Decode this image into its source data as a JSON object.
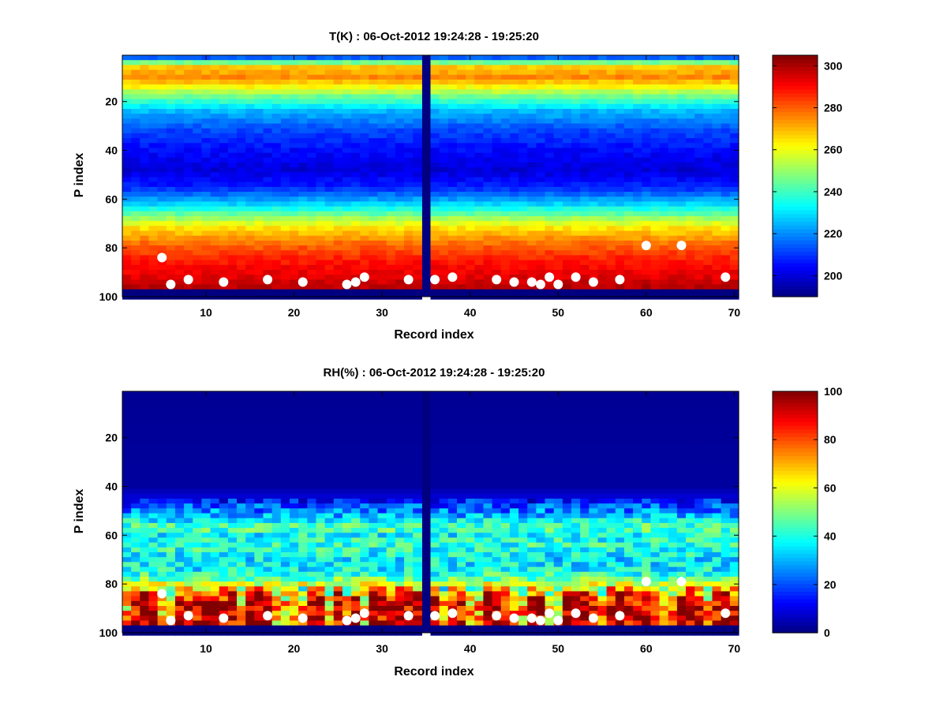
{
  "chart_data": [
    {
      "type": "heatmap",
      "title": "T(K) : 06-Oct-2012 19:24:28 - 19:25:20",
      "xlabel": "Record index",
      "ylabel": "P index",
      "xlim": [
        0.5,
        70.5
      ],
      "ylim": [
        1,
        100
      ],
      "y_reversed": true,
      "xticks": [
        10,
        20,
        30,
        40,
        50,
        60,
        70
      ],
      "yticks": [
        20,
        40,
        60,
        80,
        100
      ],
      "colorbar": {
        "min": 190,
        "max": 305,
        "ticks": [
          200,
          220,
          240,
          260,
          280,
          300
        ]
      },
      "colormap": "jet",
      "missing_record": 35,
      "profile": [
        {
          "p": 1,
          "v": 195
        },
        {
          "p": 3,
          "v": 235
        },
        {
          "p": 6,
          "v": 268
        },
        {
          "p": 10,
          "v": 275
        },
        {
          "p": 14,
          "v": 262
        },
        {
          "p": 18,
          "v": 245
        },
        {
          "p": 24,
          "v": 225
        },
        {
          "p": 32,
          "v": 212
        },
        {
          "p": 40,
          "v": 205
        },
        {
          "p": 48,
          "v": 200
        },
        {
          "p": 55,
          "v": 208
        },
        {
          "p": 62,
          "v": 228
        },
        {
          "p": 67,
          "v": 248
        },
        {
          "p": 72,
          "v": 265
        },
        {
          "p": 78,
          "v": 278
        },
        {
          "p": 85,
          "v": 288
        },
        {
          "p": 92,
          "v": 294
        },
        {
          "p": 97,
          "v": 300
        },
        {
          "p": 98,
          "v": 190
        },
        {
          "p": 100,
          "v": 190
        }
      ],
      "surface_points": [
        {
          "x": 5,
          "y": 84
        },
        {
          "x": 6,
          "y": 95
        },
        {
          "x": 8,
          "y": 93
        },
        {
          "x": 12,
          "y": 94
        },
        {
          "x": 17,
          "y": 93
        },
        {
          "x": 21,
          "y": 94
        },
        {
          "x": 26,
          "y": 95
        },
        {
          "x": 27,
          "y": 94
        },
        {
          "x": 28,
          "y": 92
        },
        {
          "x": 33,
          "y": 93
        },
        {
          "x": 36,
          "y": 93
        },
        {
          "x": 38,
          "y": 92
        },
        {
          "x": 43,
          "y": 93
        },
        {
          "x": 45,
          "y": 94
        },
        {
          "x": 47,
          "y": 94
        },
        {
          "x": 48,
          "y": 95
        },
        {
          "x": 49,
          "y": 92
        },
        {
          "x": 50,
          "y": 95
        },
        {
          "x": 52,
          "y": 92
        },
        {
          "x": 54,
          "y": 94
        },
        {
          "x": 57,
          "y": 93
        },
        {
          "x": 60,
          "y": 79
        },
        {
          "x": 64,
          "y": 79
        },
        {
          "x": 69,
          "y": 92
        }
      ]
    },
    {
      "type": "heatmap",
      "title": "RH(%) : 06-Oct-2012 19:24:28 - 19:25:20",
      "xlabel": "Record index",
      "ylabel": "P index",
      "xlim": [
        0.5,
        70.5
      ],
      "ylim": [
        1,
        100
      ],
      "y_reversed": true,
      "xticks": [
        10,
        20,
        30,
        40,
        50,
        60,
        70
      ],
      "yticks": [
        20,
        40,
        60,
        80,
        100
      ],
      "colorbar": {
        "min": 0,
        "max": 100,
        "ticks": [
          0,
          20,
          40,
          60,
          80,
          100
        ]
      },
      "colormap": "jet",
      "missing_record": 35,
      "profile": [
        {
          "p": 1,
          "v": 2
        },
        {
          "p": 40,
          "v": 3
        },
        {
          "p": 44,
          "v": 8
        },
        {
          "p": 48,
          "v": 20
        },
        {
          "p": 52,
          "v": 30
        },
        {
          "p": 57,
          "v": 48
        },
        {
          "p": 60,
          "v": 38
        },
        {
          "p": 65,
          "v": 42
        },
        {
          "p": 70,
          "v": 35
        },
        {
          "p": 75,
          "v": 38
        },
        {
          "p": 79,
          "v": 52
        },
        {
          "p": 82,
          "v": 72
        },
        {
          "p": 85,
          "v": 88
        },
        {
          "p": 90,
          "v": 95
        },
        {
          "p": 97,
          "v": 96
        },
        {
          "p": 98,
          "v": 0
        },
        {
          "p": 100,
          "v": 0
        }
      ],
      "surface_points": [
        {
          "x": 5,
          "y": 84
        },
        {
          "x": 6,
          "y": 95
        },
        {
          "x": 8,
          "y": 93
        },
        {
          "x": 12,
          "y": 94
        },
        {
          "x": 17,
          "y": 93
        },
        {
          "x": 21,
          "y": 94
        },
        {
          "x": 26,
          "y": 95
        },
        {
          "x": 27,
          "y": 94
        },
        {
          "x": 28,
          "y": 92
        },
        {
          "x": 33,
          "y": 93
        },
        {
          "x": 36,
          "y": 93
        },
        {
          "x": 38,
          "y": 92
        },
        {
          "x": 43,
          "y": 93
        },
        {
          "x": 45,
          "y": 94
        },
        {
          "x": 47,
          "y": 94
        },
        {
          "x": 48,
          "y": 95
        },
        {
          "x": 49,
          "y": 92
        },
        {
          "x": 50,
          "y": 95
        },
        {
          "x": 52,
          "y": 92
        },
        {
          "x": 54,
          "y": 94
        },
        {
          "x": 57,
          "y": 93
        },
        {
          "x": 60,
          "y": 79
        },
        {
          "x": 64,
          "y": 79
        },
        {
          "x": 69,
          "y": 92
        }
      ]
    }
  ]
}
